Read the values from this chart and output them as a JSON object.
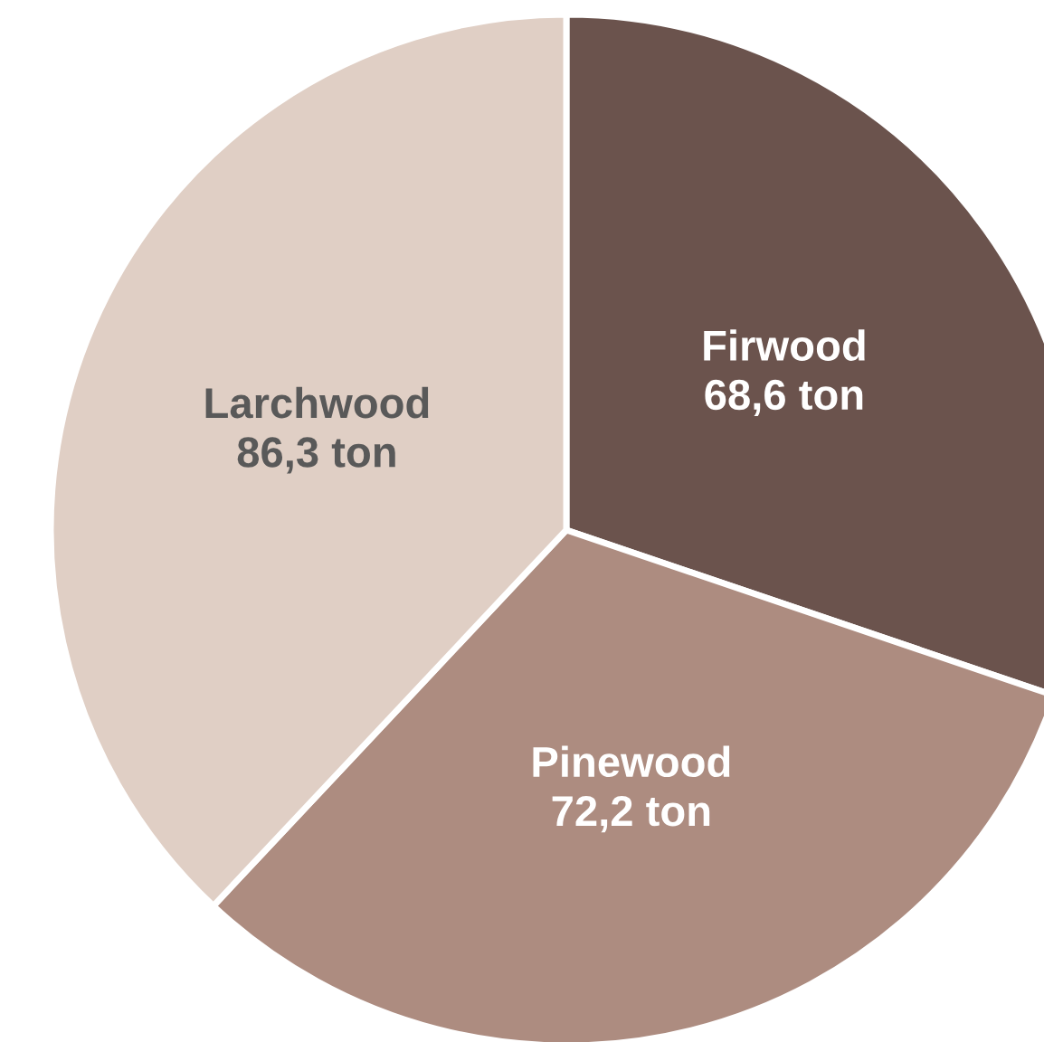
{
  "chart_data": {
    "type": "pie",
    "categories": [
      "Firwood",
      "Pinewood",
      "Larchwood"
    ],
    "values": [
      68.6,
      72.2,
      86.3
    ],
    "value_labels": [
      "68,6 ton",
      "72,2 ton",
      "86,3 ton"
    ],
    "colors": [
      "#6b534d",
      "#ad8c80",
      "#e0cfc5"
    ],
    "legend": false
  }
}
